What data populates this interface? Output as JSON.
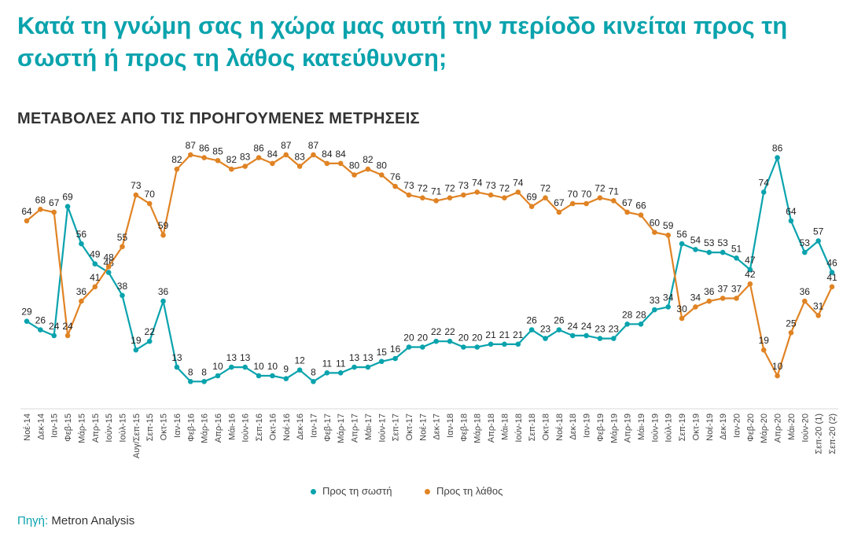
{
  "title": "Κατά τη γνώμη σας η χώρα μας αυτή την περίοδο κινείται προς τη σωστή ή προς τη λάθος κατεύθυνση;",
  "subtitle": "ΜΕΤΑΒΟΛΕΣ ΑΠΟ ΤΙΣ ΠΡΟΗΓΟΥΜΕΝΕΣ ΜΕΤΡΗΣΕΙΣ",
  "source": {
    "label": "Πηγή:",
    "value": "Metron Analysis"
  },
  "colors": {
    "teal": "#0aa3ad",
    "orange": "#e08324",
    "title": "#0aa3ad"
  },
  "chart_data": {
    "type": "line",
    "title": "Κατά τη γνώμη σας η χώρα μας αυτή την περίοδο κινείται προς τη σωστή ή προς τη λάθος κατεύθυνση;",
    "subtitle": "ΜΕΤΑΒΟΛΕΣ ΑΠΟ ΤΙΣ ΠΡΟΗΓΟΥΜΕΝΕΣ ΜΕΤΡΗΣΕΙΣ",
    "x": [
      "Νοέ-14",
      "Δεκ-14",
      "Ιαν-15",
      "Φεβ-15",
      "Μάρ-15",
      "Απρ-15",
      "Ιούν-15",
      "Ιούλ-15",
      "Αυγ/Σεπ-15",
      "Σεπ-15",
      "Οκτ-15",
      "Ιαν-16",
      "Φεβ-16",
      "Μάρ-16",
      "Απρ-16",
      "Μάι-16",
      "Ιούν-16",
      "Σεπ-16",
      "Οκτ-16",
      "Νοέ-16",
      "Δεκ-16",
      "Ιαν-17",
      "Φεβ-17",
      "Μάρ-17",
      "Απρ-17",
      "Μάι-17",
      "Ιούν-17",
      "Σεπ-17",
      "Οκτ-17",
      "Νοέ-17",
      "Δεκ-17",
      "Ιαν-18",
      "Φεβ-18",
      "Μάρ-18",
      "Απρ-18",
      "Μάι-18",
      "Ιούν-18",
      "Σεπ-18",
      "Οκτ-18",
      "Νοέ-18",
      "Δεκ-18",
      "Ιαν-19",
      "Φεβ-19",
      "Μάρ-19",
      "Απρ-19",
      "Μάι-19",
      "Ιούν-19",
      "Ιούλ-19",
      "Σεπ-19",
      "Οκτ-19",
      "Νοέ-19",
      "Δεκ-19",
      "Ιαν-20",
      "Φεβ-20",
      "Μάρ-20",
      "Απρ-20",
      "Μάι-20",
      "Ιούν-20",
      "Σεπ-20 (1)",
      "Σεπ-20 (2)"
    ],
    "series": [
      {
        "name": "Προς τη σωστή",
        "color": "#0aa3ad",
        "values": [
          29,
          26,
          24,
          69,
          56,
          49,
          46,
          38,
          19,
          22,
          36,
          13,
          8,
          8,
          10,
          13,
          13,
          10,
          10,
          9,
          12,
          8,
          11,
          11,
          13,
          13,
          15,
          16,
          20,
          20,
          22,
          22,
          20,
          20,
          21,
          21,
          21,
          26,
          23,
          26,
          24,
          24,
          23,
          23,
          28,
          28,
          33,
          34,
          56,
          54,
          53,
          53,
          51,
          47,
          74,
          86,
          64,
          53,
          57,
          46
        ]
      },
      {
        "name": "Προς τη λάθος",
        "color": "#e08324",
        "values": [
          64,
          68,
          67,
          24,
          36,
          41,
          48,
          55,
          73,
          70,
          59,
          82,
          87,
          86,
          85,
          82,
          83,
          86,
          84,
          87,
          83,
          87,
          84,
          84,
          80,
          82,
          80,
          76,
          73,
          72,
          71,
          72,
          73,
          74,
          73,
          72,
          74,
          69,
          72,
          67,
          70,
          70,
          72,
          71,
          67,
          66,
          60,
          59,
          30,
          34,
          36,
          37,
          37,
          42,
          19,
          10,
          25,
          36,
          31,
          41
        ]
      }
    ],
    "ylim": [
      0,
      100
    ],
    "grid": false,
    "legend": "bottom-center"
  }
}
